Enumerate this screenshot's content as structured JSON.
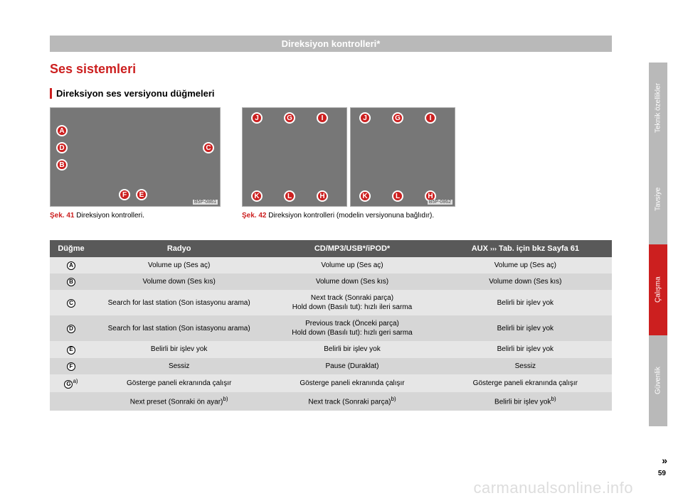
{
  "header": "Direksiyon kontrolleri*",
  "title1": "Ses sistemleri",
  "title2": "Direksiyon ses versiyonu düğmeleri",
  "fig1": {
    "ref": "Şek. 41",
    "caption": " Direksiyon kontrolleri.",
    "tag": "B5P-0861",
    "badges": [
      "A",
      "B",
      "C",
      "D",
      "E",
      "F"
    ]
  },
  "fig2": {
    "ref": "Şek. 42",
    "caption": " Direksiyon kontrolleri (modelin versiyonuna bağlıdır).",
    "tag": "B5P-0862",
    "badges": [
      "G",
      "H",
      "I",
      "J",
      "K",
      "L"
    ]
  },
  "table": {
    "headers": {
      "c1": "Düğme",
      "c2": "Radyo",
      "c3": "CD/MP3/USB*/iPOD*",
      "c4_prefix": "AUX ",
      "c4_suffix": " Tab. için bkz Sayfa 61"
    },
    "rows": [
      {
        "letter": "A",
        "radio": "Volume up (Ses aç)",
        "cd": "Volume up (Ses aç)",
        "aux": "Volume up (Ses aç)"
      },
      {
        "letter": "B",
        "radio": "Volume down (Ses kıs)",
        "cd": "Volume down (Ses kıs)",
        "aux": "Volume down (Ses kıs)"
      },
      {
        "letter": "C",
        "radio": "Search for last station (Son istasyonu arama)",
        "cd": "Next track (Sonraki parça)\nHold down (Basılı tut): hızlı ileri sarma",
        "aux": "Belirli bir işlev yok"
      },
      {
        "letter": "D",
        "radio": "Search for last station (Son istasyonu arama)",
        "cd": "Previous track (Önceki parça)\nHold down (Basılı tut): hızlı geri sarma",
        "aux": "Belirli bir işlev yok"
      },
      {
        "letter": "E",
        "radio": "Belirli bir işlev yok",
        "cd": "Belirli bir işlev yok",
        "aux": "Belirli bir işlev yok"
      },
      {
        "letter": "F",
        "radio": "Sessiz",
        "cd": "Pause (Duraklat)",
        "aux": "Sessiz"
      },
      {
        "letter": "G",
        "sup": "a)",
        "radio": "Gösterge paneli ekranında çalışır",
        "cd": "Gösterge paneli ekranında çalışır",
        "aux": "Gösterge paneli ekranında çalışır"
      },
      {
        "letter": "",
        "radio": "Next preset (Sonraki ön ayar)",
        "radio_sup": "b)",
        "cd": "Next track (Sonraki parça)",
        "cd_sup": "b)",
        "aux": "Belirli bir işlev yok",
        "aux_sup": "b)"
      }
    ]
  },
  "tabs": {
    "t1": "Teknik özellikler",
    "t2": "Tavsiye",
    "t3": "Çalışma",
    "t4": "Güvenlik"
  },
  "pagenum": "59",
  "arrows": "»",
  "watermark": "carmanualsonline.info"
}
